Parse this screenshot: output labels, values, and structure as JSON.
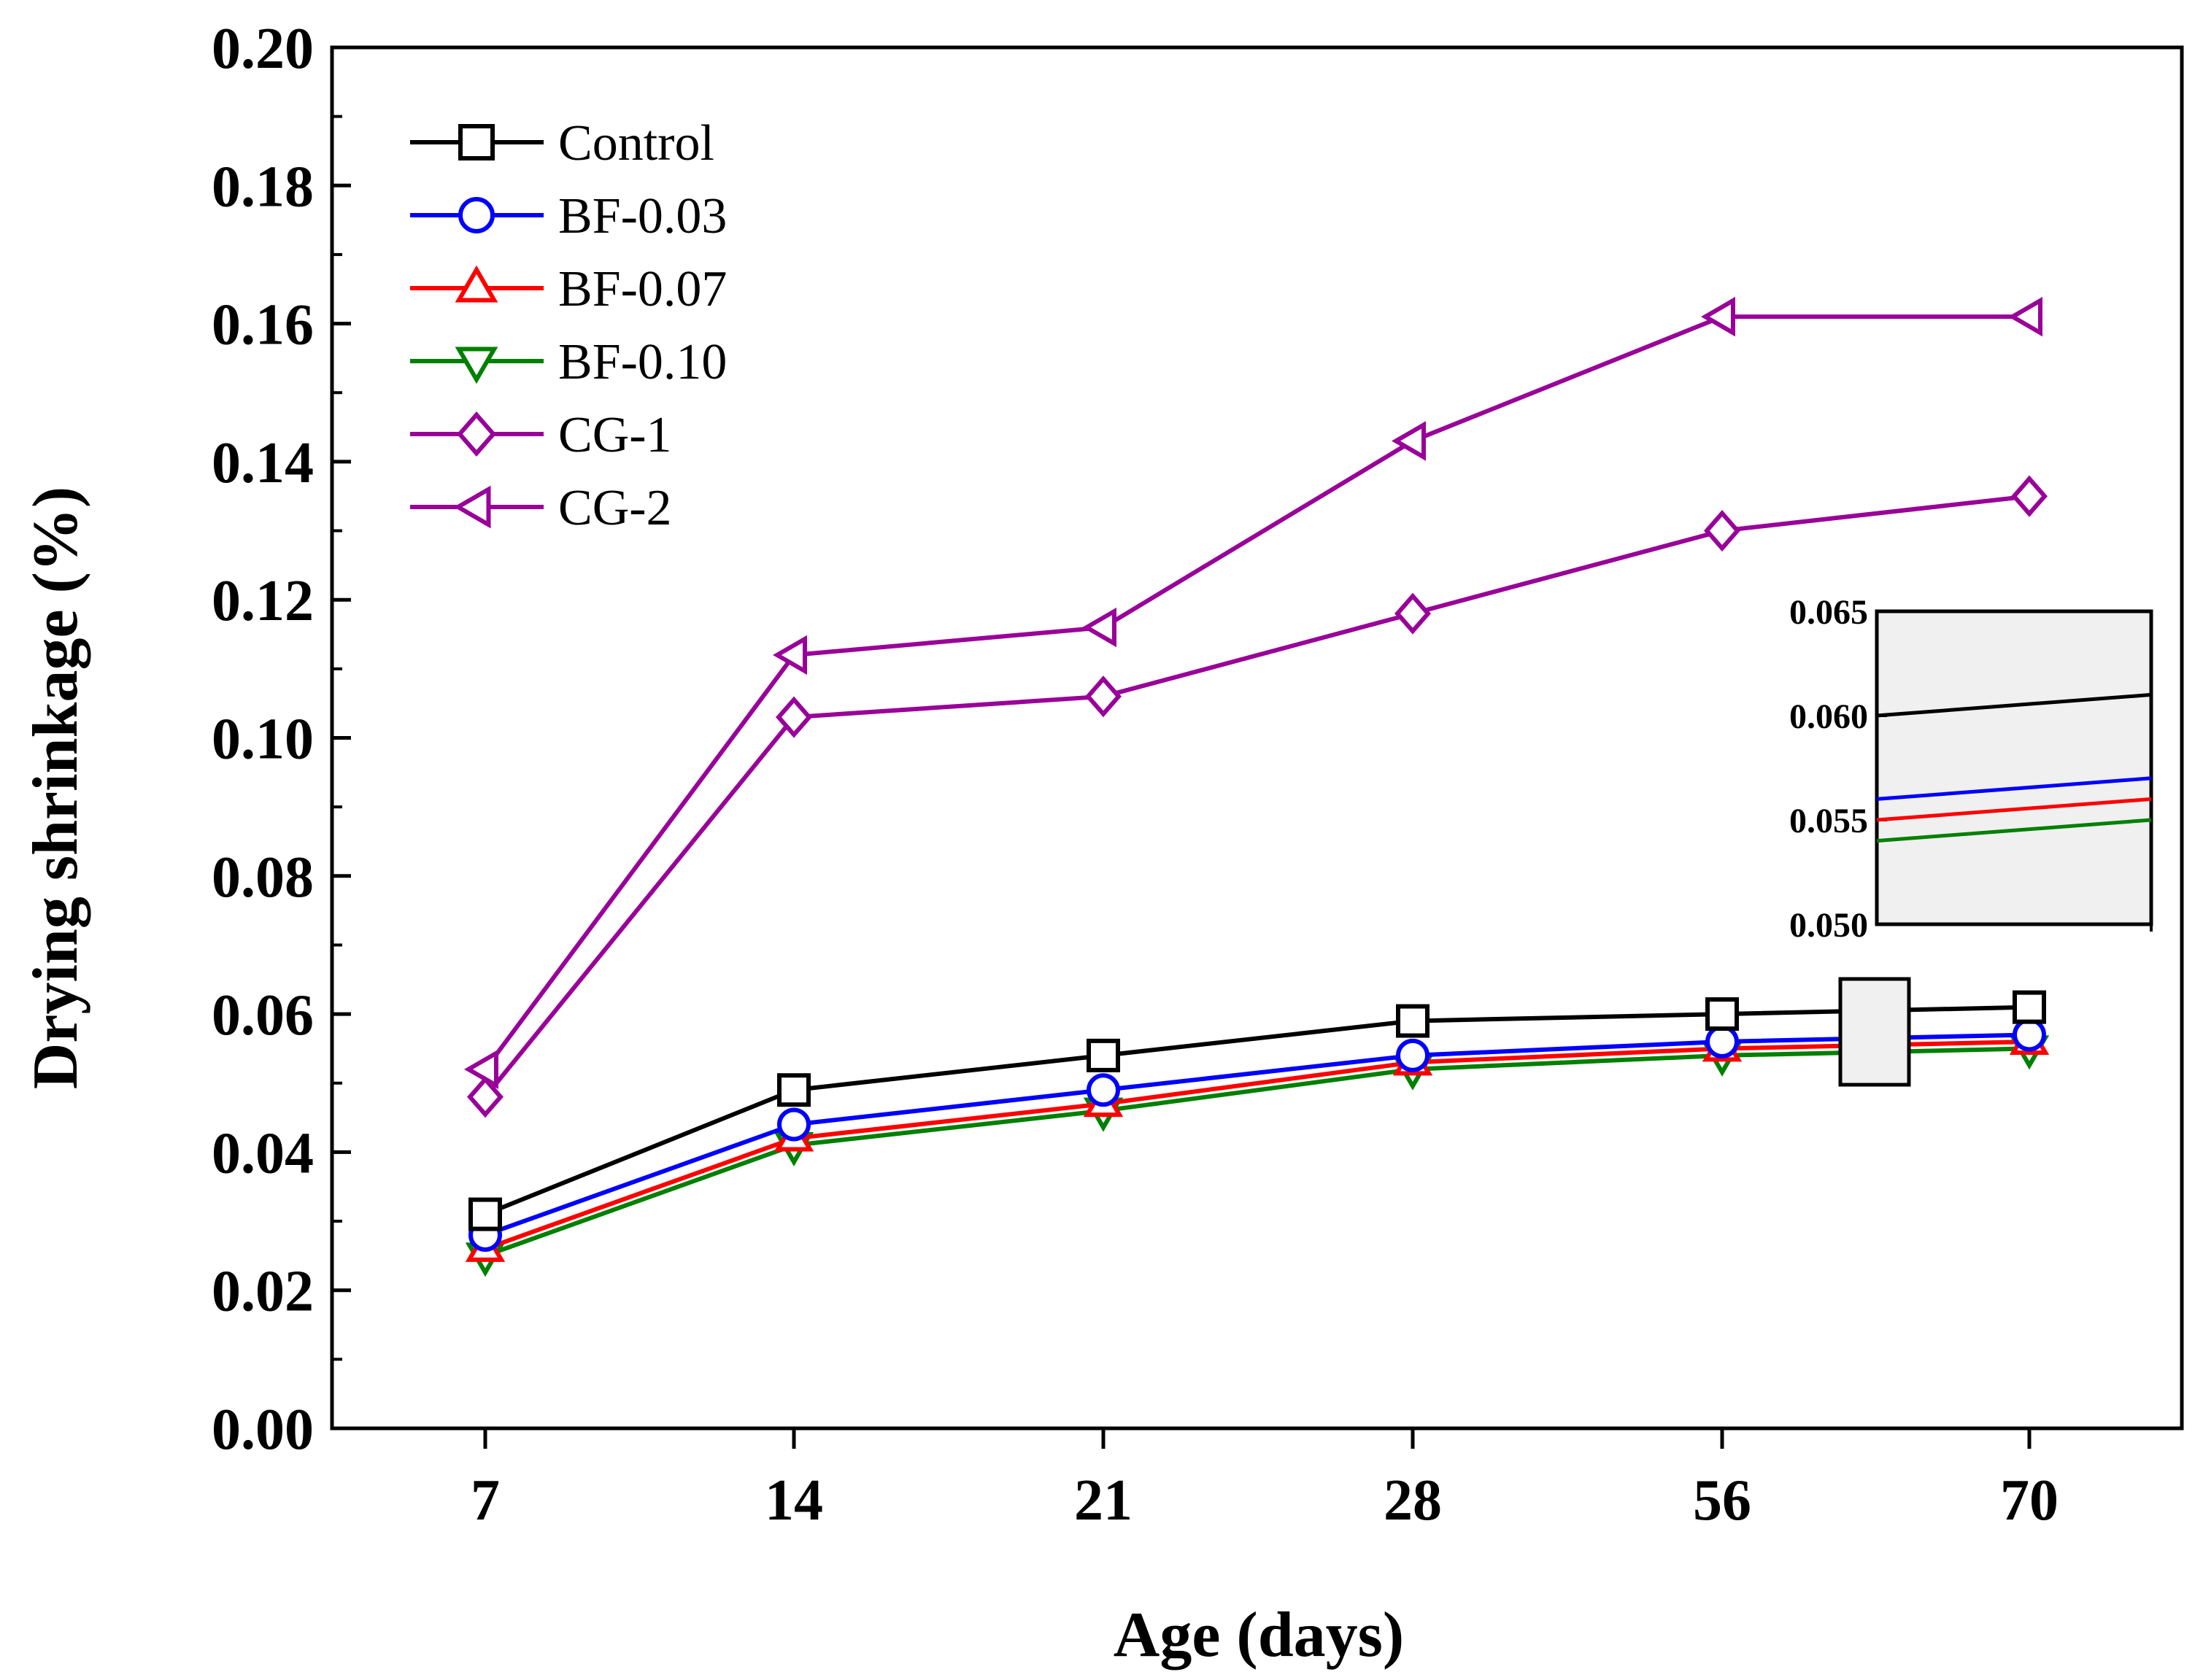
{
  "chart_data": {
    "type": "line",
    "xlabel": "Age (days)",
    "ylabel": "Drying shrinkage (%)",
    "categories": [
      "7",
      "14",
      "21",
      "28",
      "56",
      "70"
    ],
    "ylim": [
      0,
      0.2
    ],
    "yticks": [
      "0.00",
      "0.02",
      "0.04",
      "0.06",
      "0.08",
      "0.10",
      "0.12",
      "0.14",
      "0.16",
      "0.18",
      "0.20"
    ],
    "legend_position": "top-left",
    "series": [
      {
        "name": "Control",
        "color": "#000000",
        "marker": "square",
        "values": [
          0.031,
          0.049,
          0.054,
          0.059,
          0.06,
          0.061
        ]
      },
      {
        "name": "BF-0.03",
        "color": "#0000ff",
        "marker": "circle",
        "values": [
          0.028,
          0.044,
          0.049,
          0.054,
          0.056,
          0.057
        ]
      },
      {
        "name": "BF-0.07",
        "color": "#ff0000",
        "marker": "triangle-up",
        "values": [
          0.026,
          0.042,
          0.047,
          0.053,
          0.055,
          0.056
        ]
      },
      {
        "name": "BF-0.10",
        "color": "#008000",
        "marker": "triangle-down",
        "values": [
          0.025,
          0.041,
          0.046,
          0.052,
          0.054,
          0.055
        ]
      },
      {
        "name": "CG-1",
        "color": "#990099",
        "marker": "diamond",
        "values": [
          0.048,
          0.103,
          0.106,
          0.118,
          0.13,
          0.135
        ]
      },
      {
        "name": "CG-2",
        "color": "#990099",
        "marker": "triangle-left",
        "values": [
          0.052,
          0.112,
          0.116,
          0.143,
          0.161,
          0.161
        ]
      }
    ],
    "inset": {
      "ylim": [
        0.05,
        0.065
      ],
      "yticks": [
        "0.050",
        "0.055",
        "0.060",
        "0.065"
      ],
      "x_range": [
        "56",
        "70"
      ],
      "background": "#f0f0f0"
    }
  }
}
